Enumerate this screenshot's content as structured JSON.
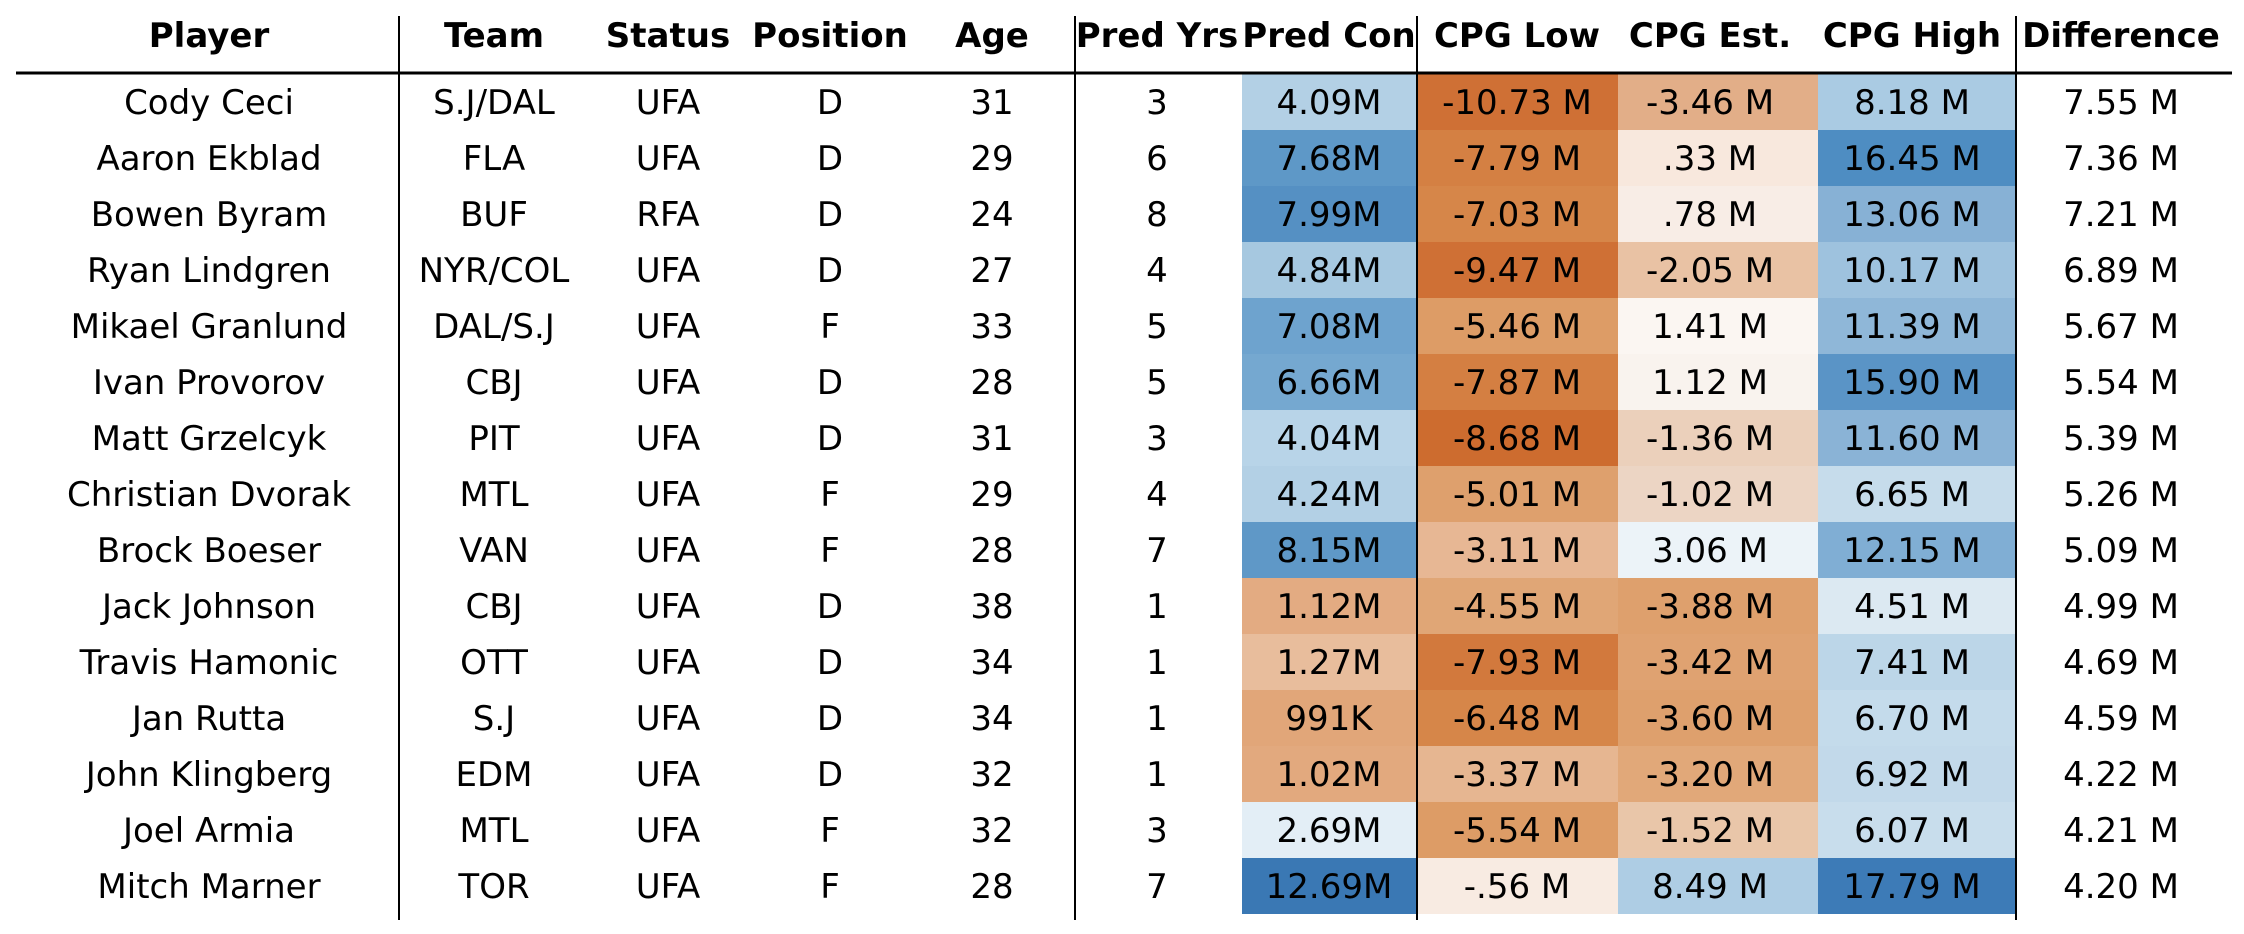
{
  "chart_data": {
    "type": "table",
    "title": "",
    "columns": [
      "Player",
      "Team",
      "Status",
      "Position",
      "Age",
      "Pred Yrs",
      "Pred Con",
      "CPG Low",
      "CPG Est.",
      "CPG High",
      "Difference"
    ],
    "rows": [
      [
        "Cody Ceci",
        "S.J/DAL",
        "UFA",
        "D",
        "31",
        "3",
        "4.09M",
        "-10.73 M",
        "-3.46 M",
        "8.18 M",
        "7.55 M"
      ],
      [
        "Aaron Ekblad",
        "FLA",
        "UFA",
        "D",
        "29",
        "6",
        "7.68M",
        "-7.79 M",
        ".33 M",
        "16.45 M",
        "7.36 M"
      ],
      [
        "Bowen Byram",
        "BUF",
        "RFA",
        "D",
        "24",
        "8",
        "7.99M",
        "-7.03 M",
        ".78 M",
        "13.06 M",
        "7.21 M"
      ],
      [
        "Ryan Lindgren",
        "NYR/COL",
        "UFA",
        "D",
        "27",
        "4",
        "4.84M",
        "-9.47 M",
        "-2.05 M",
        "10.17 M",
        "6.89 M"
      ],
      [
        "Mikael Granlund",
        "DAL/S.J",
        "UFA",
        "F",
        "33",
        "5",
        "7.08M",
        "-5.46 M",
        "1.41 M",
        "11.39 M",
        "5.67 M"
      ],
      [
        "Ivan Provorov",
        "CBJ",
        "UFA",
        "D",
        "28",
        "5",
        "6.66M",
        "-7.87 M",
        "1.12 M",
        "15.90 M",
        "5.54 M"
      ],
      [
        "Matt Grzelcyk",
        "PIT",
        "UFA",
        "D",
        "31",
        "3",
        "4.04M",
        "-8.68 M",
        "-1.36 M",
        "11.60 M",
        "5.39 M"
      ],
      [
        "Christian Dvorak",
        "MTL",
        "UFA",
        "F",
        "29",
        "4",
        "4.24M",
        "-5.01 M",
        "-1.02 M",
        "6.65 M",
        "5.26 M"
      ],
      [
        "Brock Boeser",
        "VAN",
        "UFA",
        "F",
        "28",
        "7",
        "8.15M",
        "-3.11 M",
        "3.06 M",
        "12.15 M",
        "5.09 M"
      ],
      [
        "Jack Johnson",
        "CBJ",
        "UFA",
        "D",
        "38",
        "1",
        "1.12M",
        "-4.55 M",
        "-3.88 M",
        "4.51 M",
        "4.99 M"
      ],
      [
        "Travis Hamonic",
        "OTT",
        "UFA",
        "D",
        "34",
        "1",
        "1.27M",
        "-7.93 M",
        "-3.42 M",
        "7.41 M",
        "4.69 M"
      ],
      [
        "Jan Rutta",
        "S.J",
        "UFA",
        "D",
        "34",
        "1",
        "991K",
        "-6.48 M",
        "-3.60 M",
        "6.70 M",
        "4.59 M"
      ],
      [
        "John Klingberg",
        "EDM",
        "UFA",
        "D",
        "32",
        "1",
        "1.02M",
        "-3.37 M",
        "-3.20 M",
        "6.92 M",
        "4.22 M"
      ],
      [
        "Joel Armia",
        "MTL",
        "UFA",
        "F",
        "32",
        "3",
        "2.69M",
        "-5.54 M",
        "-1.52 M",
        "6.07 M",
        "4.21 M"
      ],
      [
        "Mitch Marner",
        "TOR",
        "UFA",
        "F",
        "28",
        "7",
        "12.69M",
        "-.56 M",
        "8.49 M",
        "17.79 M",
        "4.20 M"
      ]
    ],
    "cell_colors": [
      [
        "#b3d0e5",
        "#cf7035",
        "#e2ae88",
        "#aacbe3",
        "#ffffff"
      ],
      [
        "#5e98c7",
        "#d48043",
        "#f8e8dd",
        "#4e8dc2",
        "#ffffff"
      ],
      [
        "#5590c3",
        "#d68649",
        "#f8ede6",
        "#87b1d5",
        "#ffffff"
      ],
      [
        "#a6c8e0",
        "#cf7035",
        "#e9c2a4",
        "#9ec2de",
        "#ffffff"
      ],
      [
        "#6ea3ce",
        "#dd9c66",
        "#fbf6f2",
        "#8fb7d8",
        "#ffffff"
      ],
      [
        "#75a8d0",
        "#d47f42",
        "#f9f3ee",
        "#5a94c6",
        "#ffffff"
      ],
      [
        "#b8d4e8",
        "#cd6c2f",
        "#ebd0bb",
        "#8ab3d6",
        "#ffffff"
      ],
      [
        "#b3d0e5",
        "#dea06d",
        "#ecd5c4",
        "#c6dceb",
        "#ffffff"
      ],
      [
        "#5f98c7",
        "#e7b794",
        "#ecf3f8",
        "#80aed4",
        "#ffffff"
      ],
      [
        "#e3ab82",
        "#e0a676",
        "#dea06d",
        "#dce9f2",
        "#ffffff"
      ],
      [
        "#e8bd9c",
        "#d2793d",
        "#dfa271",
        "#bcd6e8",
        "#ffffff"
      ],
      [
        "#e1a679",
        "#d68649",
        "#dea06d",
        "#c4dbeb",
        "#ffffff"
      ],
      [
        "#e2a97e",
        "#e6b691",
        "#e1a879",
        "#c2d9ea",
        "#ffffff"
      ],
      [
        "#e3eef6",
        "#dd9c66",
        "#e9c6a9",
        "#c8ddec",
        "#ffffff"
      ],
      [
        "#3a78b4",
        "#f8ebe2",
        "#aecde4",
        "#3d7bb7",
        "#ffffff"
      ]
    ]
  }
}
